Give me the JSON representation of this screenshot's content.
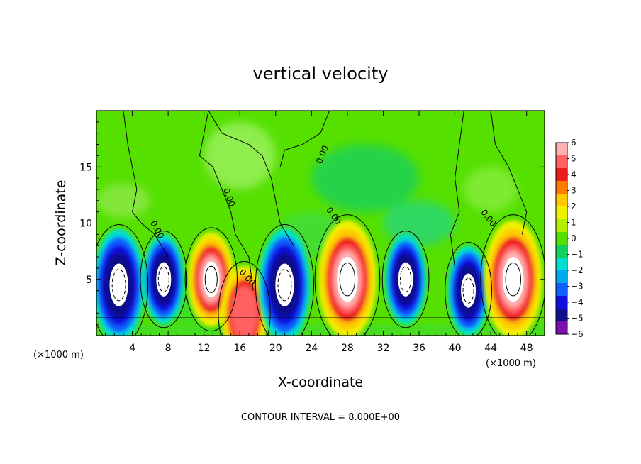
{
  "chart_data": {
    "type": "heatmap",
    "title": "vertical velocity",
    "xlabel": "X-coordinate",
    "ylabel": "Z-coordinate",
    "x_unit_label": "(×1000 m)",
    "xlim": [
      0,
      50
    ],
    "ylim": [
      0,
      20
    ],
    "x_ticks": [
      4,
      8,
      12,
      16,
      20,
      24,
      28,
      32,
      36,
      40,
      44,
      48
    ],
    "y_ticks": [
      5,
      10,
      15
    ],
    "colorbar": {
      "ticks": [
        "6",
        "5",
        "4",
        "3",
        "2",
        "1",
        "0",
        "−1",
        "−2",
        "−3",
        "−4",
        "−5",
        "−6"
      ],
      "range": [
        -6,
        6
      ],
      "colors": [
        "#ffb0b0",
        "#ff6060",
        "#ee1a1a",
        "#ff7a00",
        "#ffc800",
        "#f0f000",
        "#b6ee00",
        "#55e000",
        "#10d060",
        "#00e0d0",
        "#00a8f0",
        "#1060ff",
        "#1010e0",
        "#10108a",
        "#7a10b0"
      ]
    },
    "contour_label": "0.00",
    "footer": "CONTOUR INTERVAL = 8.000E+00",
    "features": [
      {
        "type": "downdraft",
        "x": 2.5,
        "z": 4.5,
        "w": -12
      },
      {
        "type": "downdraft",
        "x": 7.5,
        "z": 5.0,
        "w": -8
      },
      {
        "type": "updraft",
        "x": 12.8,
        "z": 5.0,
        "w": 10
      },
      {
        "type": "updraft",
        "x": 16.5,
        "z": 2.0,
        "w": 6
      },
      {
        "type": "downdraft",
        "x": 21.0,
        "z": 4.5,
        "w": -12
      },
      {
        "type": "updraft",
        "x": 28.0,
        "z": 5.0,
        "w": 16
      },
      {
        "type": "downdraft",
        "x": 34.5,
        "z": 5.0,
        "w": -10
      },
      {
        "type": "downdraft",
        "x": 41.5,
        "z": 4.0,
        "w": -10
      },
      {
        "type": "updraft",
        "x": 46.5,
        "z": 5.0,
        "w": 16
      }
    ]
  }
}
